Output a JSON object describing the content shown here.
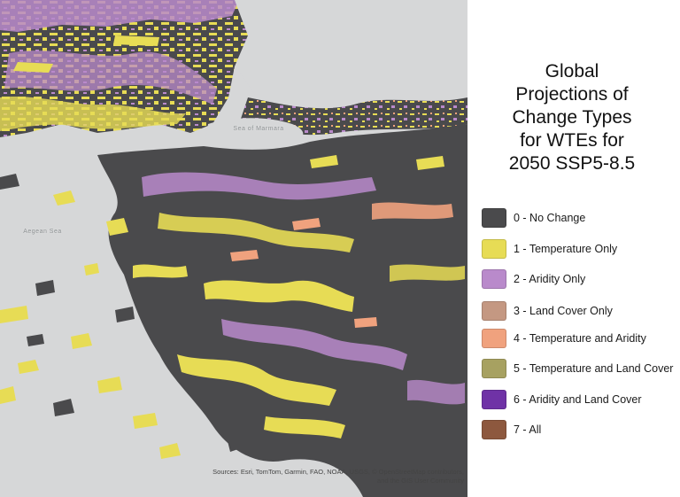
{
  "legend": {
    "title": "Global\nProjections of\nChange Types\nfor WTEs for\n2050 SSP5-8.5",
    "items": [
      {
        "label": "0 - No Change",
        "color": "#4a4a4c"
      },
      {
        "label": "1 - Temperature Only",
        "color": "#e7dc55"
      },
      {
        "label": "2 - Aridity Only",
        "color": "#b98acb"
      },
      {
        "label": "3 - Land Cover Only",
        "color": "#c49882"
      },
      {
        "label": "4 - Temperature and Aridity",
        "color": "#f0a27e"
      },
      {
        "label": "5 - Temperature and Land Cover",
        "color": "#a7a161"
      },
      {
        "label": "6 - Aridity and Land Cover",
        "color": "#6f32a6"
      },
      {
        "label": "7 - All",
        "color": "#8d583e"
      }
    ]
  },
  "map": {
    "water_color": "#d6d7d8",
    "place_labels": [
      "Sea of Marmara",
      "Aegean Sea"
    ],
    "attribution": "Sources: Esri, TomTom, Garmin, FAO, NOAA, USGS, © OpenStreetMap contributors, and the GIS User Community"
  }
}
